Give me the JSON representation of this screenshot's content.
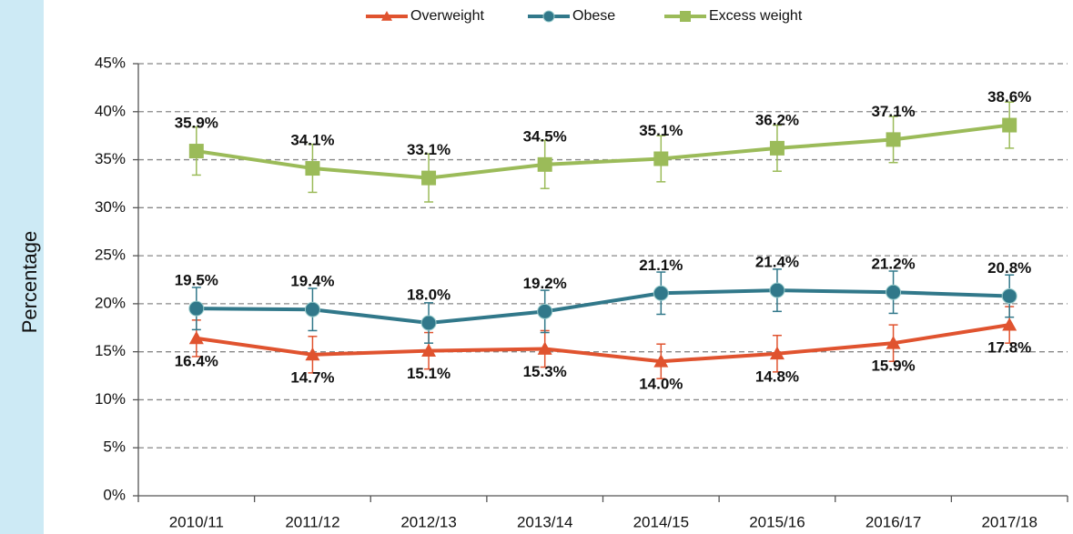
{
  "chart_data": {
    "type": "line",
    "y_label": "Percentage",
    "categories": [
      "2010/11",
      "2011/12",
      "2012/13",
      "2013/14",
      "2014/15",
      "2015/16",
      "2016/17",
      "2017/18"
    ],
    "series": [
      {
        "name": "Overweight",
        "color": "#e0532f",
        "marker": "triangle",
        "values": [
          16.4,
          14.7,
          15.1,
          15.3,
          14.0,
          14.8,
          15.9,
          17.8
        ],
        "value_labels": [
          "16.4%",
          "14.7%",
          "15.1%",
          "15.3%",
          "14.0%",
          "14.8%",
          "15.9%",
          "17.8%"
        ],
        "errors": [
          1.9,
          1.9,
          1.9,
          1.9,
          1.8,
          1.9,
          1.9,
          1.9
        ]
      },
      {
        "name": "Obese",
        "color": "#31788a",
        "marker": "circle",
        "values": [
          19.5,
          19.4,
          18.0,
          19.2,
          21.1,
          21.4,
          21.2,
          20.8
        ],
        "value_labels": [
          "19.5%",
          "19.4%",
          "18.0%",
          "19.2%",
          "21.1%",
          "21.4%",
          "21.2%",
          "20.8%"
        ],
        "errors": [
          2.2,
          2.2,
          2.1,
          2.2,
          2.2,
          2.2,
          2.2,
          2.2
        ]
      },
      {
        "name": "Excess weight",
        "color": "#9bbb59",
        "marker": "square",
        "values": [
          35.9,
          34.1,
          33.1,
          34.5,
          35.1,
          36.2,
          37.1,
          38.6
        ],
        "value_labels": [
          "35.9%",
          "34.1%",
          "33.1%",
          "34.5%",
          "35.1%",
          "36.2%",
          "37.1%",
          "38.6%"
        ],
        "errors": [
          2.5,
          2.5,
          2.5,
          2.5,
          2.4,
          2.4,
          2.4,
          2.4
        ]
      }
    ],
    "ylim": [
      0,
      45
    ],
    "yticks": [
      {
        "value": 0,
        "label": "0%"
      },
      {
        "value": 5,
        "label": "5%"
      },
      {
        "value": 10,
        "label": "10%"
      },
      {
        "value": 15,
        "label": "15%"
      },
      {
        "value": 20,
        "label": "20%"
      },
      {
        "value": 25,
        "label": "25%"
      },
      {
        "value": 30,
        "label": "30%"
      },
      {
        "value": 35,
        "label": "35%"
      },
      {
        "value": 40,
        "label": "40%"
      },
      {
        "value": 45,
        "label": "45%"
      }
    ],
    "grid": true,
    "legend": "top"
  }
}
